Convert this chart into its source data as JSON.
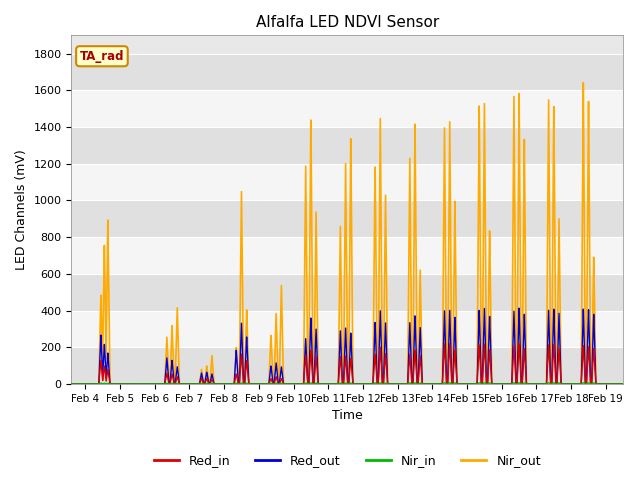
{
  "title": "Alfalfa LED NDVI Sensor",
  "xlabel": "Time",
  "ylabel": "LED Channels (mV)",
  "ylim": [
    0,
    1900
  ],
  "xlim_start": -0.4,
  "xlim_end": 15.5,
  "background_color": "#e8e8e8",
  "band_color_light": "#f5f5f5",
  "band_color_dark": "#e0e0e0",
  "legend_label": "TA_rad",
  "series": {
    "Red_in": {
      "color": "#dd0000",
      "lw": 1.0
    },
    "Red_out": {
      "color": "#0000dd",
      "lw": 1.0
    },
    "Nir_in": {
      "color": "#00bb00",
      "lw": 1.0
    },
    "Nir_out": {
      "color": "#ffaa00",
      "lw": 1.2
    }
  },
  "yticks": [
    0,
    200,
    400,
    600,
    800,
    1000,
    1200,
    1400,
    1600,
    1800
  ],
  "xtick_days": [
    0,
    1,
    2,
    3,
    4,
    5,
    6,
    7,
    8,
    9,
    10,
    11,
    12,
    13,
    14,
    15
  ],
  "feb_start": 4,
  "spikes": [
    {
      "day": 0.45,
      "red_in": 130,
      "red_out": 270,
      "nir_in": 5,
      "nir_out": 490
    },
    {
      "day": 0.55,
      "red_in": 100,
      "red_out": 220,
      "nir_in": 4,
      "nir_out": 770
    },
    {
      "day": 0.65,
      "red_in": 80,
      "red_out": 170,
      "nir_in": 4,
      "nir_out": 900
    },
    {
      "day": 2.35,
      "red_in": 60,
      "red_out": 145,
      "nir_in": 4,
      "nir_out": 260
    },
    {
      "day": 2.5,
      "red_in": 55,
      "red_out": 130,
      "nir_in": 4,
      "nir_out": 320
    },
    {
      "day": 2.65,
      "red_in": 40,
      "red_out": 95,
      "nir_in": 3,
      "nir_out": 420
    },
    {
      "day": 3.35,
      "red_in": 30,
      "red_out": 60,
      "nir_in": 3,
      "nir_out": 80
    },
    {
      "day": 3.5,
      "red_in": 30,
      "red_out": 65,
      "nir_in": 3,
      "nir_out": 100
    },
    {
      "day": 3.65,
      "red_in": 25,
      "red_out": 55,
      "nir_in": 3,
      "nir_out": 155
    },
    {
      "day": 4.35,
      "red_in": 55,
      "red_out": 185,
      "nir_in": 4,
      "nir_out": 200
    },
    {
      "day": 4.5,
      "red_in": 165,
      "red_out": 335,
      "nir_in": 5,
      "nir_out": 1060
    },
    {
      "day": 4.65,
      "red_in": 130,
      "red_out": 260,
      "nir_in": 4,
      "nir_out": 410
    },
    {
      "day": 5.35,
      "red_in": 30,
      "red_out": 100,
      "nir_in": 4,
      "nir_out": 270
    },
    {
      "day": 5.5,
      "red_in": 40,
      "red_out": 115,
      "nir_in": 4,
      "nir_out": 385
    },
    {
      "day": 5.65,
      "red_in": 30,
      "red_out": 95,
      "nir_in": 4,
      "nir_out": 545
    },
    {
      "day": 6.35,
      "red_in": 160,
      "red_out": 250,
      "nir_in": 5,
      "nir_out": 1200
    },
    {
      "day": 6.5,
      "red_in": 185,
      "red_out": 365,
      "nir_in": 6,
      "nir_out": 1460
    },
    {
      "day": 6.65,
      "red_in": 155,
      "red_out": 300,
      "nir_in": 5,
      "nir_out": 940
    },
    {
      "day": 7.35,
      "red_in": 150,
      "red_out": 290,
      "nir_in": 5,
      "nir_out": 860
    },
    {
      "day": 7.5,
      "red_in": 155,
      "red_out": 310,
      "nir_in": 5,
      "nir_out": 1220
    },
    {
      "day": 7.65,
      "red_in": 140,
      "red_out": 280,
      "nir_in": 5,
      "nir_out": 1350
    },
    {
      "day": 8.35,
      "red_in": 165,
      "red_out": 340,
      "nir_in": 6,
      "nir_out": 1200
    },
    {
      "day": 8.5,
      "red_in": 200,
      "red_out": 400,
      "nir_in": 6,
      "nir_out": 1450
    },
    {
      "day": 8.65,
      "red_in": 170,
      "red_out": 340,
      "nir_in": 5,
      "nir_out": 1050
    },
    {
      "day": 9.35,
      "red_in": 165,
      "red_out": 340,
      "nir_in": 6,
      "nir_out": 1250
    },
    {
      "day": 9.5,
      "red_in": 185,
      "red_out": 375,
      "nir_in": 6,
      "nir_out": 1430
    },
    {
      "day": 9.65,
      "red_in": 155,
      "red_out": 310,
      "nir_in": 5,
      "nir_out": 625
    },
    {
      "day": 10.35,
      "red_in": 220,
      "red_out": 400,
      "nir_in": 7,
      "nir_out": 1400
    },
    {
      "day": 10.5,
      "red_in": 225,
      "red_out": 410,
      "nir_in": 7,
      "nir_out": 1460
    },
    {
      "day": 10.65,
      "red_in": 185,
      "red_out": 365,
      "nir_in": 6,
      "nir_out": 1000
    },
    {
      "day": 11.35,
      "red_in": 215,
      "red_out": 405,
      "nir_in": 7,
      "nir_out": 1530
    },
    {
      "day": 11.5,
      "red_in": 220,
      "red_out": 415,
      "nir_in": 7,
      "nir_out": 1540
    },
    {
      "day": 11.65,
      "red_in": 190,
      "red_out": 375,
      "nir_in": 6,
      "nir_out": 850
    },
    {
      "day": 12.35,
      "red_in": 215,
      "red_out": 405,
      "nir_in": 7,
      "nir_out": 1600
    },
    {
      "day": 12.5,
      "red_in": 220,
      "red_out": 415,
      "nir_in": 7,
      "nir_out": 1590
    },
    {
      "day": 12.65,
      "red_in": 195,
      "red_out": 385,
      "nir_in": 6,
      "nir_out": 1350
    },
    {
      "day": 13.35,
      "red_in": 215,
      "red_out": 405,
      "nir_in": 7,
      "nir_out": 1560
    },
    {
      "day": 13.5,
      "red_in": 220,
      "red_out": 415,
      "nir_in": 7,
      "nir_out": 1540
    },
    {
      "day": 13.65,
      "red_in": 195,
      "red_out": 385,
      "nir_in": 6,
      "nir_out": 900
    },
    {
      "day": 14.35,
      "red_in": 210,
      "red_out": 410,
      "nir_in": 7,
      "nir_out": 1650
    },
    {
      "day": 14.5,
      "red_in": 205,
      "red_out": 410,
      "nir_in": 7,
      "nir_out": 1560
    },
    {
      "day": 14.65,
      "red_in": 195,
      "red_out": 385,
      "nir_in": 6,
      "nir_out": 700
    }
  ]
}
